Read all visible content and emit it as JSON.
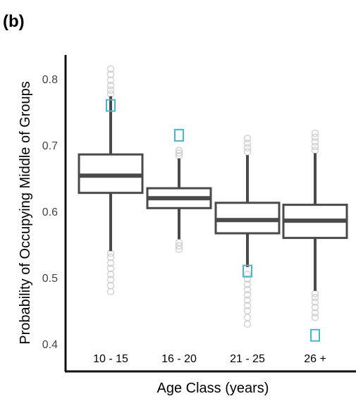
{
  "panel_label": "(b)",
  "chart_data": {
    "type": "box",
    "title": "",
    "xlabel": "Age Class (years)",
    "ylabel": "Probability of Occupying Middle of Groups",
    "ylim": [
      0.37,
      0.83
    ],
    "yticks": [
      0.4,
      0.5,
      0.6,
      0.7,
      0.8
    ],
    "ytick_labels": [
      "0.4",
      "0.5",
      "0.6",
      "0.7",
      "0.8"
    ],
    "categories": [
      "10 - 15",
      "16 - 20",
      "21 - 25",
      "26 +"
    ],
    "boxes": [
      {
        "category": "10 - 15",
        "whisker_low": 0.54,
        "q1": 0.628,
        "median": 0.654,
        "q3": 0.686,
        "whisker_high": 0.774,
        "outliers": [
          0.479,
          0.488,
          0.497,
          0.505,
          0.514,
          0.522,
          0.531,
          0.537,
          0.777,
          0.783,
          0.79,
          0.798,
          0.807,
          0.815
        ],
        "observed": 0.76
      },
      {
        "category": "16 - 20",
        "whisker_low": 0.558,
        "q1": 0.605,
        "median": 0.62,
        "q3": 0.635,
        "whisker_high": 0.68,
        "outliers": [
          0.543,
          0.548,
          0.553,
          0.684,
          0.688,
          0.692
        ],
        "observed": 0.715
      },
      {
        "category": "21 - 25",
        "whisker_low": 0.516,
        "q1": 0.567,
        "median": 0.587,
        "q3": 0.613,
        "whisker_high": 0.685,
        "outliers": [
          0.43,
          0.44,
          0.45,
          0.458,
          0.466,
          0.474,
          0.482,
          0.49,
          0.498,
          0.505,
          0.69,
          0.696,
          0.703,
          0.71
        ],
        "observed": 0.51
      },
      {
        "category": "26 +",
        "whisker_low": 0.48,
        "q1": 0.56,
        "median": 0.586,
        "q3": 0.61,
        "whisker_high": 0.688,
        "outliers": [
          0.44,
          0.447,
          0.455,
          0.463,
          0.47,
          0.476,
          0.692,
          0.698,
          0.705,
          0.712,
          0.718
        ],
        "observed": 0.413
      }
    ],
    "colors": {
      "box": "#4a4a4a",
      "outlier": "#c8c8c8",
      "observed": "#4bb6c9",
      "axis": "#111111"
    },
    "grid": false,
    "legend": "none"
  }
}
